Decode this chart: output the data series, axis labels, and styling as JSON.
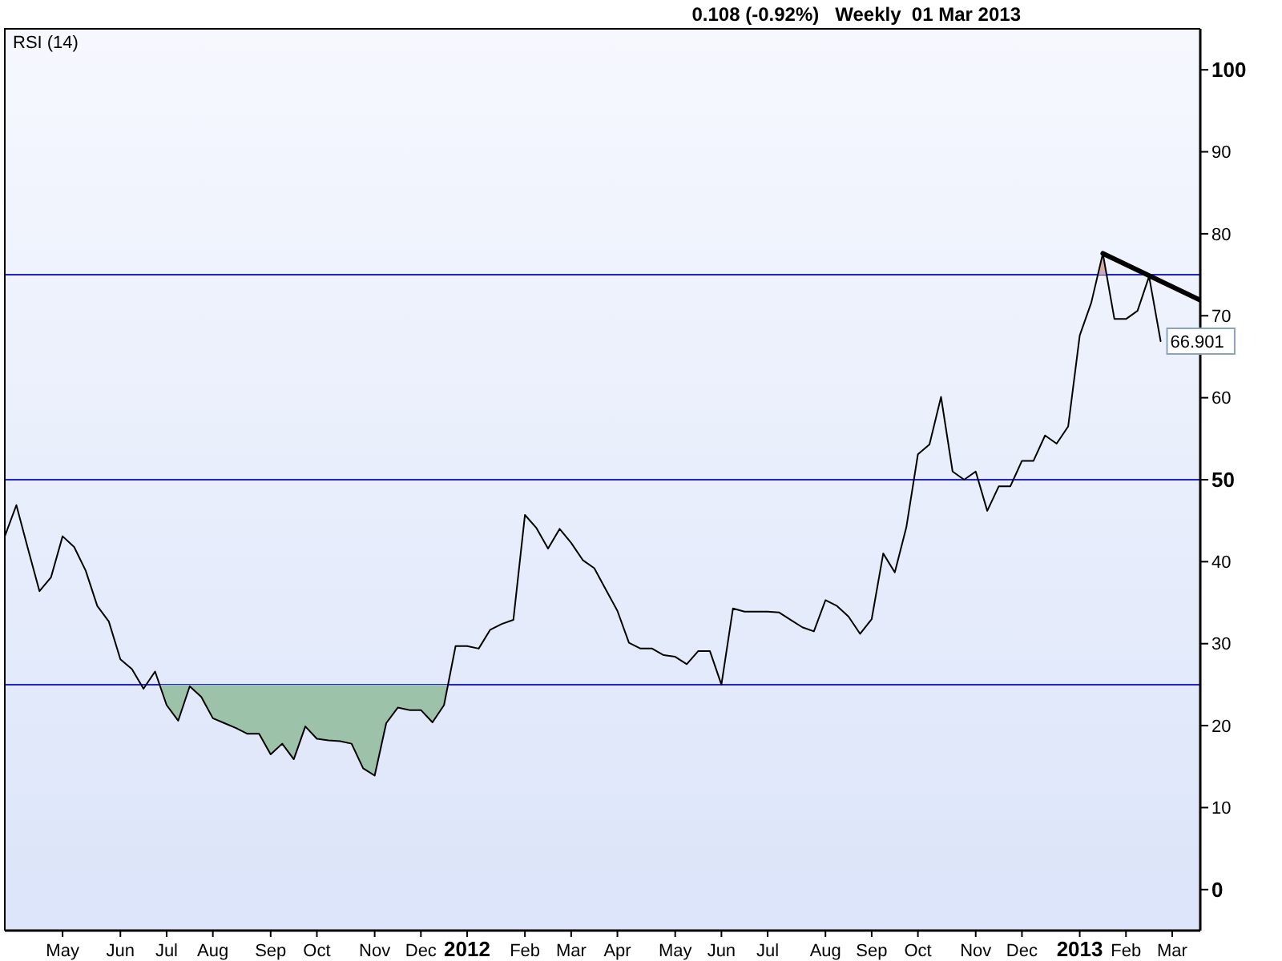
{
  "chart_data": {
    "type": "line",
    "title": "0.108 (-0.92%)   Weekly  01 Mar 2013",
    "x": [
      "2011-03-28",
      "2011-04-04",
      "2011-04-11",
      "2011-04-18",
      "2011-04-25",
      "2011-05-02",
      "2011-05-09",
      "2011-05-16",
      "2011-05-23",
      "2011-05-30",
      "2011-06-06",
      "2011-06-13",
      "2011-06-20",
      "2011-06-27",
      "2011-07-04",
      "2011-07-11",
      "2011-07-18",
      "2011-07-25",
      "2011-08-01",
      "2011-08-08",
      "2011-08-15",
      "2011-08-22",
      "2011-08-29",
      "2011-09-05",
      "2011-09-12",
      "2011-09-19",
      "2011-09-26",
      "2011-10-03",
      "2011-10-10",
      "2011-10-17",
      "2011-10-24",
      "2011-10-31",
      "2011-11-07",
      "2011-11-14",
      "2011-11-21",
      "2011-11-28",
      "2011-12-05",
      "2011-12-12",
      "2011-12-19",
      "2011-12-26",
      "2012-01-02",
      "2012-01-09",
      "2012-01-16",
      "2012-01-23",
      "2012-01-30",
      "2012-02-06",
      "2012-02-13",
      "2012-02-20",
      "2012-02-27",
      "2012-03-05",
      "2012-03-12",
      "2012-03-19",
      "2012-03-26",
      "2012-04-02",
      "2012-04-09",
      "2012-04-16",
      "2012-04-23",
      "2012-04-30",
      "2012-05-07",
      "2012-05-14",
      "2012-05-21",
      "2012-05-28",
      "2012-06-04",
      "2012-06-11",
      "2012-06-18",
      "2012-06-25",
      "2012-07-02",
      "2012-07-09",
      "2012-07-16",
      "2012-07-23",
      "2012-07-30",
      "2012-08-06",
      "2012-08-13",
      "2012-08-20",
      "2012-08-27",
      "2012-09-03",
      "2012-09-10",
      "2012-09-17",
      "2012-09-24",
      "2012-10-01",
      "2012-10-08",
      "2012-10-15",
      "2012-10-22",
      "2012-10-29",
      "2012-11-05",
      "2012-11-12",
      "2012-11-19",
      "2012-11-26",
      "2012-12-03",
      "2012-12-10",
      "2012-12-17",
      "2012-12-24",
      "2012-12-31",
      "2013-01-07",
      "2013-01-14",
      "2013-01-21",
      "2013-01-28",
      "2013-02-04",
      "2013-02-11",
      "2013-02-18",
      "2013-02-25"
    ],
    "series": [
      {
        "name": "RSI (14)",
        "color": "#000000",
        "values": [
          43.1,
          46.9,
          41.6,
          36.4,
          38.1,
          43.1,
          41.8,
          38.9,
          34.6,
          32.7,
          28.1,
          26.9,
          24.5,
          26.6,
          22.5,
          20.6,
          24.8,
          23.5,
          20.9,
          20.3,
          19.7,
          19.0,
          19.0,
          16.5,
          17.8,
          15.9,
          19.9,
          18.4,
          18.2,
          18.1,
          17.8,
          14.8,
          13.9,
          20.3,
          22.2,
          21.9,
          21.9,
          20.4,
          22.5,
          29.7,
          29.7,
          29.4,
          31.7,
          32.4,
          32.9,
          45.7,
          44.1,
          41.6,
          44.0,
          42.3,
          40.2,
          39.2,
          36.6,
          34.0,
          30.1,
          29.4,
          29.4,
          28.6,
          28.4,
          27.5,
          29.1,
          29.1,
          25.0,
          34.3,
          33.9,
          33.9,
          33.9,
          33.8,
          32.9,
          32.0,
          31.5,
          35.3,
          34.6,
          33.3,
          31.2,
          33.0,
          41.0,
          38.7,
          44.2,
          53.1,
          54.3,
          60.1,
          51.0,
          50.0,
          51.0,
          46.2,
          49.2,
          49.2,
          52.3,
          52.3,
          55.4,
          54.4,
          56.5,
          67.6,
          71.6,
          77.6,
          69.6,
          69.6,
          70.6,
          74.8,
          66.901
        ],
        "value_labels": [
          null,
          null,
          null,
          null,
          null,
          null,
          null,
          null,
          null,
          null,
          null,
          null,
          null,
          null,
          null,
          null,
          null,
          null,
          null,
          null,
          null,
          null,
          null,
          null,
          null,
          null,
          null,
          null,
          null,
          null,
          null,
          null,
          null,
          null,
          null,
          null,
          null,
          null,
          null,
          null,
          null,
          null,
          null,
          null,
          null,
          null,
          null,
          null,
          null,
          null,
          null,
          null,
          null,
          null,
          null,
          null,
          null,
          null,
          null,
          null,
          null,
          null,
          null,
          null,
          null,
          null,
          null,
          null,
          null,
          null,
          null,
          null,
          null,
          null,
          null,
          null,
          null,
          null,
          null,
          null,
          null,
          null,
          null,
          null,
          null,
          null,
          null,
          null,
          null,
          null,
          null,
          null,
          null,
          null,
          null,
          null,
          null,
          null,
          null,
          null,
          "66.901"
        ]
      },
      {
        "type": "area",
        "color": "#9cc3a9",
        "x": [
          "2011-06-30",
          "2011-07-04",
          "2011-07-11",
          "2011-07-18",
          "2011-07-25",
          "2011-08-01",
          "2011-08-08",
          "2011-08-15",
          "2011-08-22",
          "2011-08-29",
          "2011-09-05",
          "2011-09-12",
          "2011-09-19",
          "2011-09-26",
          "2011-10-03",
          "2011-10-10",
          "2011-10-17",
          "2011-10-24",
          "2011-10-31",
          "2011-11-07",
          "2011-11-14",
          "2011-11-21",
          "2011-11-28",
          "2011-12-05",
          "2011-12-12",
          "2011-12-19",
          "2011-12-21"
        ],
        "values": [
          25,
          22.5,
          20.6,
          24.8,
          23.5,
          20.9,
          20.3,
          19.7,
          19.0,
          19.0,
          16.5,
          17.8,
          15.9,
          19.9,
          18.4,
          18.2,
          18.1,
          17.8,
          14.8,
          13.9,
          20.3,
          22.2,
          21.9,
          21.9,
          20.4,
          22.5,
          25
        ]
      },
      {
        "type": "area",
        "color": "#d4a9a9",
        "x": [
          "2013-01-18",
          "2013-01-21",
          "2013-01-23"
        ],
        "values": [
          75,
          77.6,
          75
        ]
      },
      {
        "type": "line",
        "color": "#000000",
        "x": [
          "2013-01-21",
          "2013-03-21"
        ],
        "values": [
          77.6,
          71.9
        ]
      }
    ],
    "xlim": [
      "2011-03-28",
      "2013-03-21"
    ],
    "xticks": [
      {
        "value": "2011-05-02",
        "label": "May"
      },
      {
        "value": "2011-06-06",
        "label": "Jun"
      },
      {
        "value": "2011-07-04",
        "label": "Jul"
      },
      {
        "value": "2011-08-01",
        "label": "Aug"
      },
      {
        "value": "2011-09-05",
        "label": "Sep"
      },
      {
        "value": "2011-10-03",
        "label": "Oct"
      },
      {
        "value": "2011-11-07",
        "label": "Nov"
      },
      {
        "value": "2011-12-05",
        "label": "Dec"
      },
      {
        "value": "2012-01-02",
        "label": "2012"
      },
      {
        "value": "2012-02-06",
        "label": "Feb"
      },
      {
        "value": "2012-03-05",
        "label": "Mar"
      },
      {
        "value": "2012-04-02",
        "label": "Apr"
      },
      {
        "value": "2012-05-07",
        "label": "May"
      },
      {
        "value": "2012-06-04",
        "label": "Jun"
      },
      {
        "value": "2012-07-02",
        "label": "Jul"
      },
      {
        "value": "2012-08-06",
        "label": "Aug"
      },
      {
        "value": "2012-09-03",
        "label": "Sep"
      },
      {
        "value": "2012-10-01",
        "label": "Oct"
      },
      {
        "value": "2012-11-05",
        "label": "Nov"
      },
      {
        "value": "2012-12-03",
        "label": "Dec"
      },
      {
        "value": "2013-01-07",
        "label": "2013"
      },
      {
        "value": "2013-02-04",
        "label": "Feb"
      },
      {
        "value": "2013-03-04",
        "label": "Mar"
      }
    ],
    "ylim": [
      -5,
      105
    ],
    "yticks": [
      0,
      10,
      20,
      30,
      40,
      50,
      60,
      70,
      80,
      90,
      100
    ],
    "ref_lines": [
      {
        "axis": "y",
        "value": 25,
        "color": "#2020e0"
      },
      {
        "axis": "y",
        "value": 50,
        "color": "#2020e0"
      },
      {
        "axis": "y",
        "value": 75,
        "color": "#2020e0"
      }
    ],
    "legend": "top left"
  }
}
